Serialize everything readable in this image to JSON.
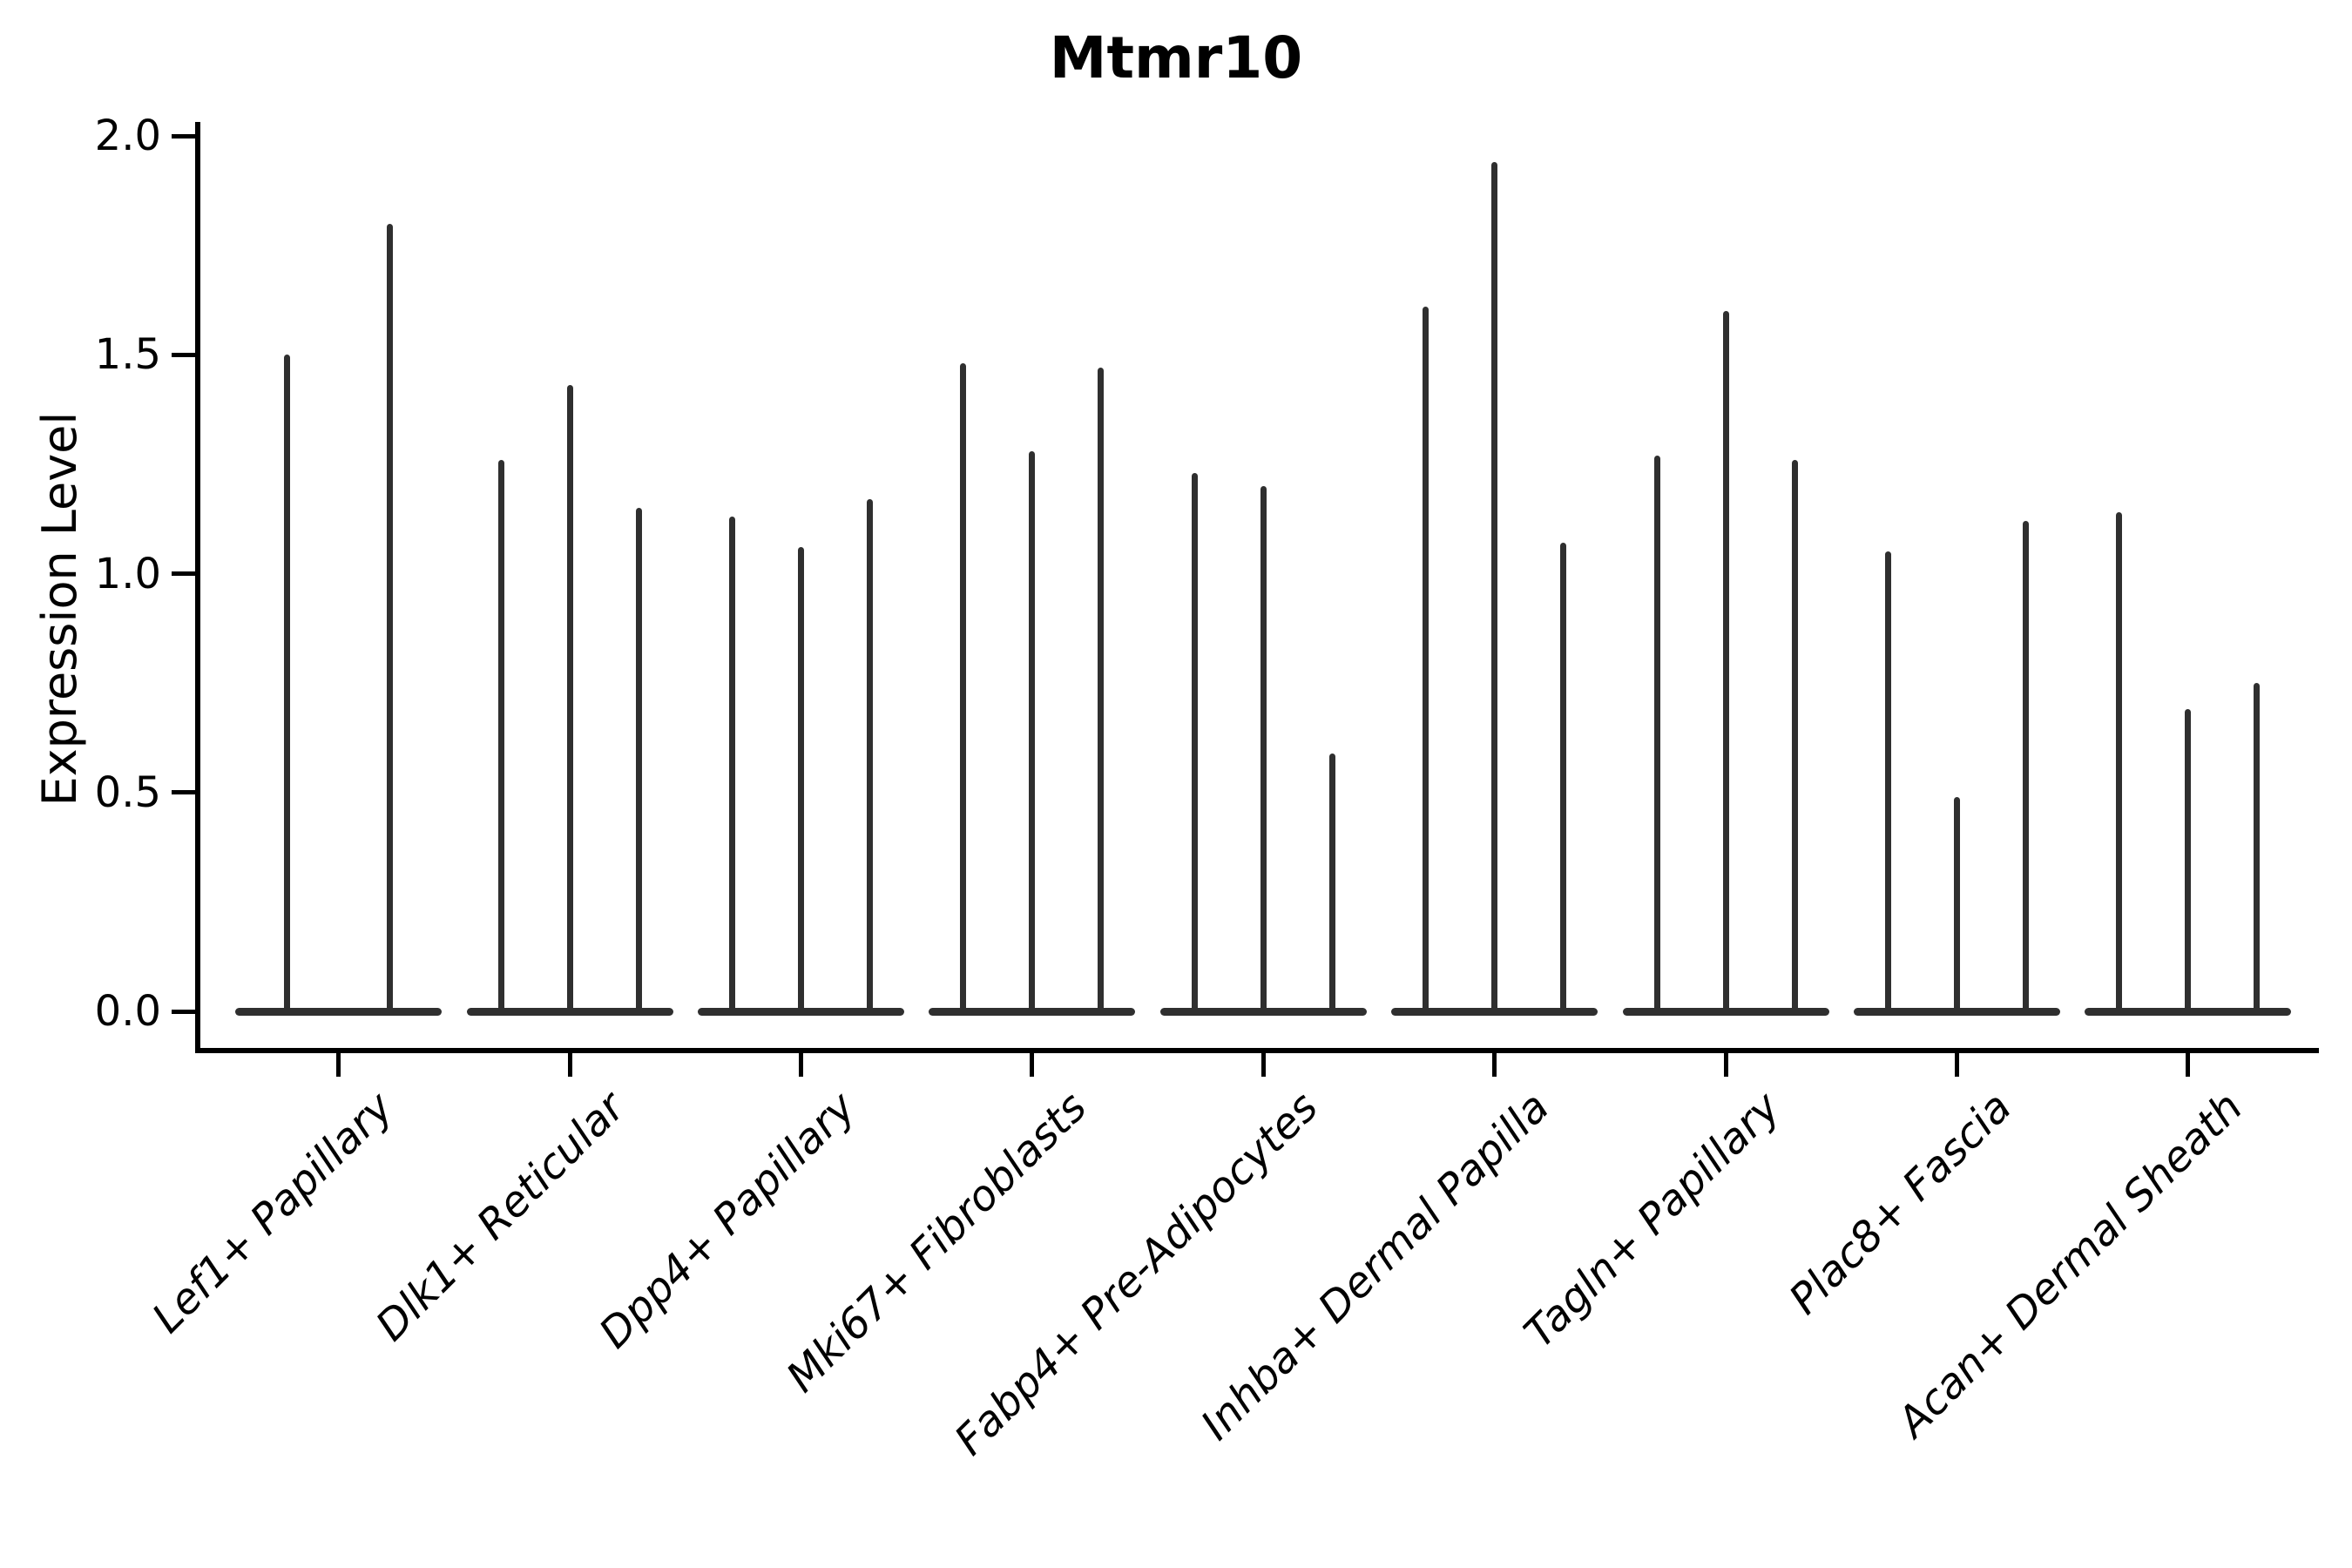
{
  "title": "Mtmr10",
  "y_axis": {
    "label": "Expression Level",
    "tick_labels": [
      "0.0",
      "0.5",
      "1.0",
      "1.5",
      "2.0"
    ]
  },
  "chart_data": {
    "type": "violin",
    "title": "Mtmr10",
    "xlabel": "",
    "ylabel": "Expression Level",
    "ylim": [
      -0.09,
      2.11
    ],
    "yticks": [
      0.0,
      0.5,
      1.0,
      1.5,
      2.0
    ],
    "grid": false,
    "legend": false,
    "categories": [
      "Lef1+ Papillary",
      "Dlk1+ Reticular",
      "Dpp4+ Papillary",
      "Mki67+ Fibroblasts",
      "Fabp4+ Pre-Adipocytes",
      "Inhba+ Dermal Papilla",
      "Tagln+ Papillary",
      "Plac8+ Fascia",
      "Acan+ Dermal Sheath"
    ],
    "series": [
      {
        "category": "Lef1+ Papillary",
        "violin_max_values": [
          1.5,
          1.8
        ]
      },
      {
        "category": "Dlk1+ Reticular",
        "violin_max_values": [
          1.26,
          1.43,
          1.15
        ]
      },
      {
        "category": "Dpp4+ Papillary",
        "violin_max_values": [
          1.13,
          1.06,
          1.17
        ]
      },
      {
        "category": "Mki67+ Fibroblasts",
        "violin_max_values": [
          1.48,
          1.28,
          1.47
        ]
      },
      {
        "category": "Fabp4+ Pre-Adipocytes",
        "violin_max_values": [
          1.23,
          1.2,
          0.59
        ]
      },
      {
        "category": "Inhba+ Dermal Papilla",
        "violin_max_values": [
          1.61,
          1.94,
          1.07
        ]
      },
      {
        "category": "Tagln+ Papillary",
        "violin_max_values": [
          1.27,
          1.6,
          1.26
        ]
      },
      {
        "category": "Plac8+ Fascia",
        "violin_max_values": [
          1.05,
          0.49,
          1.12
        ]
      },
      {
        "category": "Acan+ Dermal Sheath",
        "violin_max_values": [
          1.14,
          0.69,
          0.75
        ]
      }
    ],
    "colors": {
      "violin_fill": "#2f2f2f",
      "axis": "#000000",
      "background": "#ffffff"
    }
  }
}
